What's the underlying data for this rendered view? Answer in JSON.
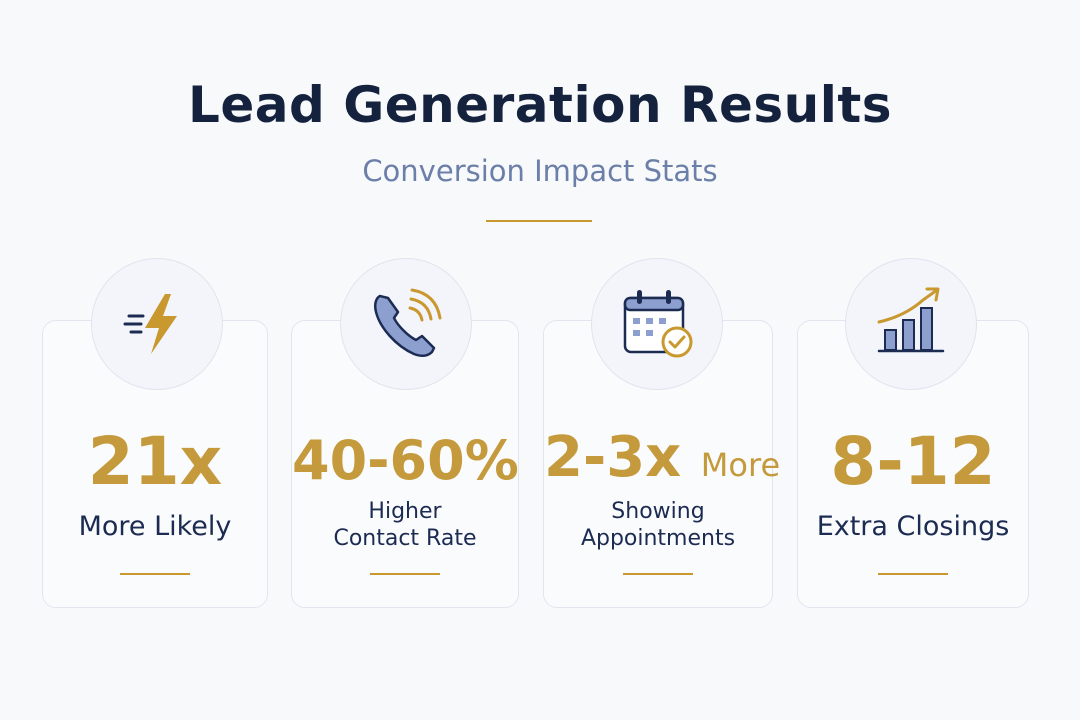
{
  "header": {
    "title": "Lead Generation Results",
    "subtitle": "Conversion Impact Stats"
  },
  "stats": [
    {
      "value": "21x",
      "value_suffix": "",
      "label_line1": "More Likely",
      "label_line2": "",
      "icon": "lightning-bolt-icon"
    },
    {
      "value": "40-60%",
      "value_suffix": "",
      "label_line1": "Higher",
      "label_line2": "Contact Rate",
      "icon": "phone-ringing-icon"
    },
    {
      "value": "2-3x",
      "value_suffix": "More",
      "label_line1": "Showing",
      "label_line2": "Appointments",
      "icon": "calendar-check-icon"
    },
    {
      "value": "8-12",
      "value_suffix": "",
      "label_line1": "Extra Closings",
      "label_line2": "",
      "icon": "growth-chart-icon"
    }
  ],
  "colors": {
    "navy": "#14223e",
    "gold": "#c49a3c",
    "slate_blue": "#6b7fa9",
    "icon_blue": "#8d9fcf"
  }
}
